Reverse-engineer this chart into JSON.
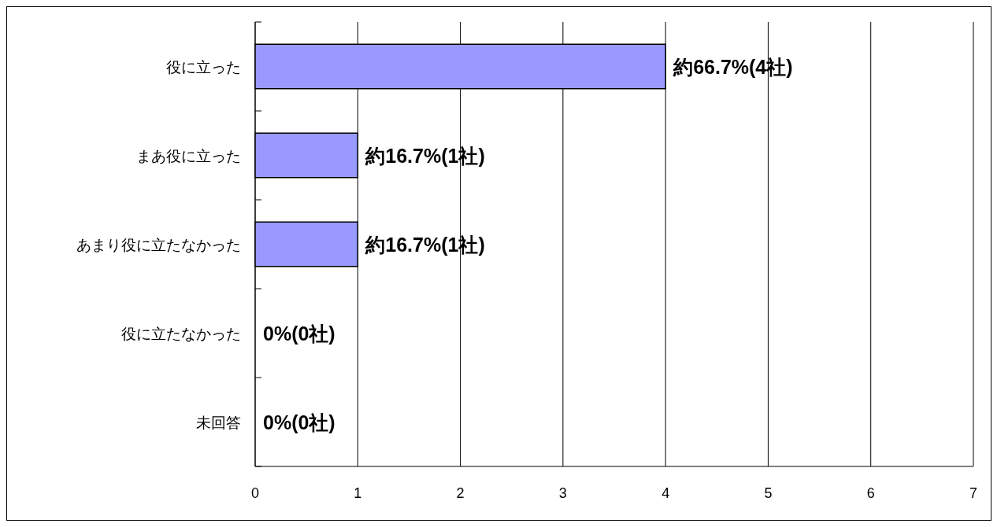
{
  "chart_data": {
    "type": "bar",
    "orientation": "horizontal",
    "categories": [
      "役に立った",
      "まあ役に立った",
      "あまり役に立たなかった",
      "役に立たなかった",
      "未回答"
    ],
    "values": [
      4,
      1,
      1,
      0,
      0
    ],
    "color": "#9999ff",
    "value_labels": [
      "約66.7%(4社)",
      "約16.7%(1社)",
      "約16.7%(1社)",
      "0%(0社)",
      "0%(0社)"
    ],
    "xlim": [
      0,
      7
    ],
    "xticks": [
      0,
      1,
      2,
      3,
      4,
      5,
      6,
      7
    ],
    "grid": "x"
  }
}
